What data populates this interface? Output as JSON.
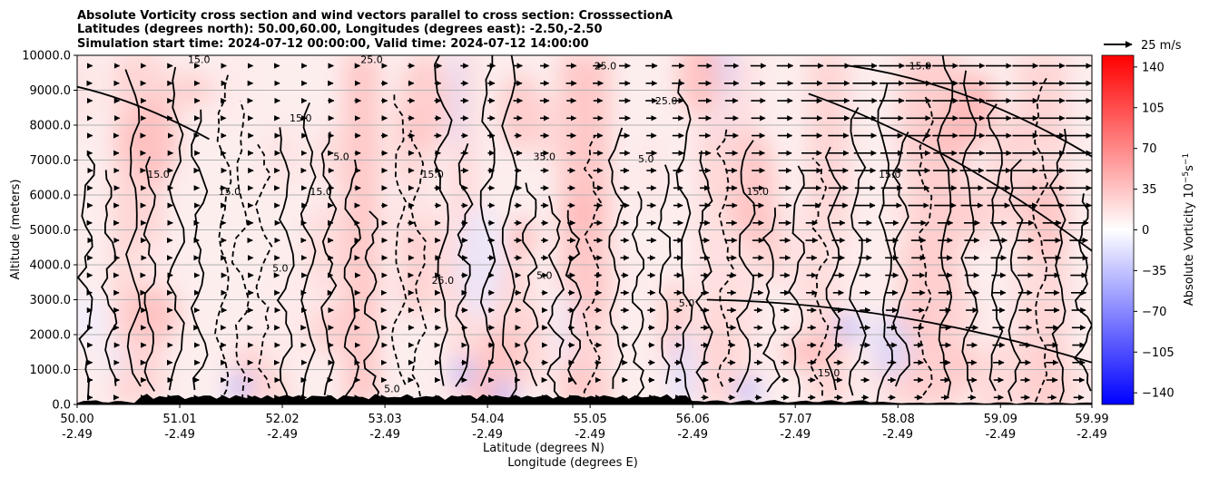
{
  "chart_data": {
    "type": "heatmap",
    "title_lines": [
      "Absolute Vorticity cross section and wind vectors parallel to cross section: CrosssectionA",
      "Latitudes (degrees north): 50.00,60.00, Longitudes (degrees east): -2.50,-2.50",
      "Simulation start time: 2024-07-12 00:00:00, Valid time: 2024-07-12 14:00:00"
    ],
    "xlabel_lines": [
      "Latitude (degrees N)",
      "Longitude (degrees E)"
    ],
    "ylabel": "Altitude (meters)",
    "x_ticks": [
      {
        "lat": "50.00",
        "lon": "-2.49"
      },
      {
        "lat": "51.01",
        "lon": "-2.49"
      },
      {
        "lat": "52.02",
        "lon": "-2.49"
      },
      {
        "lat": "53.03",
        "lon": "-2.49"
      },
      {
        "lat": "54.04",
        "lon": "-2.49"
      },
      {
        "lat": "55.05",
        "lon": "-2.49"
      },
      {
        "lat": "56.06",
        "lon": "-2.49"
      },
      {
        "lat": "57.07",
        "lon": "-2.49"
      },
      {
        "lat": "58.08",
        "lon": "-2.49"
      },
      {
        "lat": "59.09",
        "lon": "-2.49"
      },
      {
        "lat": "59.99",
        "lon": "-2.49"
      }
    ],
    "xlim": [
      50.0,
      59.99
    ],
    "y_ticks": [
      "0.0",
      "1000.0",
      "2000.0",
      "3000.0",
      "4000.0",
      "5000.0",
      "6000.0",
      "7000.0",
      "8000.0",
      "9000.0",
      "10000.0"
    ],
    "ylim": [
      0,
      10000
    ],
    "grid": "horizontal",
    "colorbar": {
      "label": "Absolute Vorticity 10",
      "label_exp": "−5",
      "label_unit": "s",
      "label_unit_exp": "−1",
      "range": [
        -150,
        150
      ],
      "tick_values": [
        140,
        105,
        70,
        35,
        0,
        -35,
        -70,
        -105,
        -140
      ],
      "tick_labels": [
        "140",
        "105",
        "70",
        "35",
        "0",
        "−35",
        "−70",
        "−105",
        "−140"
      ],
      "colormap": "bwr"
    },
    "quiver_key": {
      "label": "25 m/s",
      "speed": 25
    },
    "contour_levels": [
      -5.0,
      5.0,
      15.0,
      25.0,
      35.0
    ],
    "contour_labels": [
      {
        "text": "15.0",
        "lat": 51.2,
        "alt": 9780
      },
      {
        "text": "25.0",
        "lat": 52.9,
        "alt": 9780
      },
      {
        "text": "25.0",
        "lat": 55.2,
        "alt": 9600
      },
      {
        "text": "15.0",
        "lat": 58.3,
        "alt": 9600
      },
      {
        "text": "15.0",
        "lat": 52.2,
        "alt": 8100
      },
      {
        "text": "25.0",
        "lat": 55.8,
        "alt": 8600
      },
      {
        "text": "35.0",
        "lat": 54.6,
        "alt": 7000
      },
      {
        "text": "5.0",
        "lat": 55.6,
        "alt": 6940
      },
      {
        "text": "5.0",
        "lat": 52.6,
        "alt": 7000
      },
      {
        "text": "15.0",
        "lat": 50.8,
        "alt": 6500
      },
      {
        "text": "15.0",
        "lat": 53.5,
        "alt": 6500
      },
      {
        "text": "15.0",
        "lat": 58.0,
        "alt": 6500
      },
      {
        "text": "15.0",
        "lat": 51.5,
        "alt": 6000
      },
      {
        "text": "15.0",
        "lat": 52.4,
        "alt": 6000
      },
      {
        "text": "15.0",
        "lat": 56.7,
        "alt": 6000
      },
      {
        "text": "5.0",
        "lat": 52.0,
        "alt": 3800
      },
      {
        "text": "25.0",
        "lat": 53.6,
        "alt": 3450
      },
      {
        "text": "5.0",
        "lat": 54.6,
        "alt": 3600
      },
      {
        "text": "5.0",
        "lat": 56.0,
        "alt": 2800
      },
      {
        "text": "15.0",
        "lat": 57.4,
        "alt": 800
      },
      {
        "text": "5.0",
        "lat": 53.1,
        "alt": 350
      }
    ],
    "colormap_stops": [
      "#0000ff",
      "#ffffff",
      "#ff0000"
    ],
    "terrain_color": "#000000"
  }
}
